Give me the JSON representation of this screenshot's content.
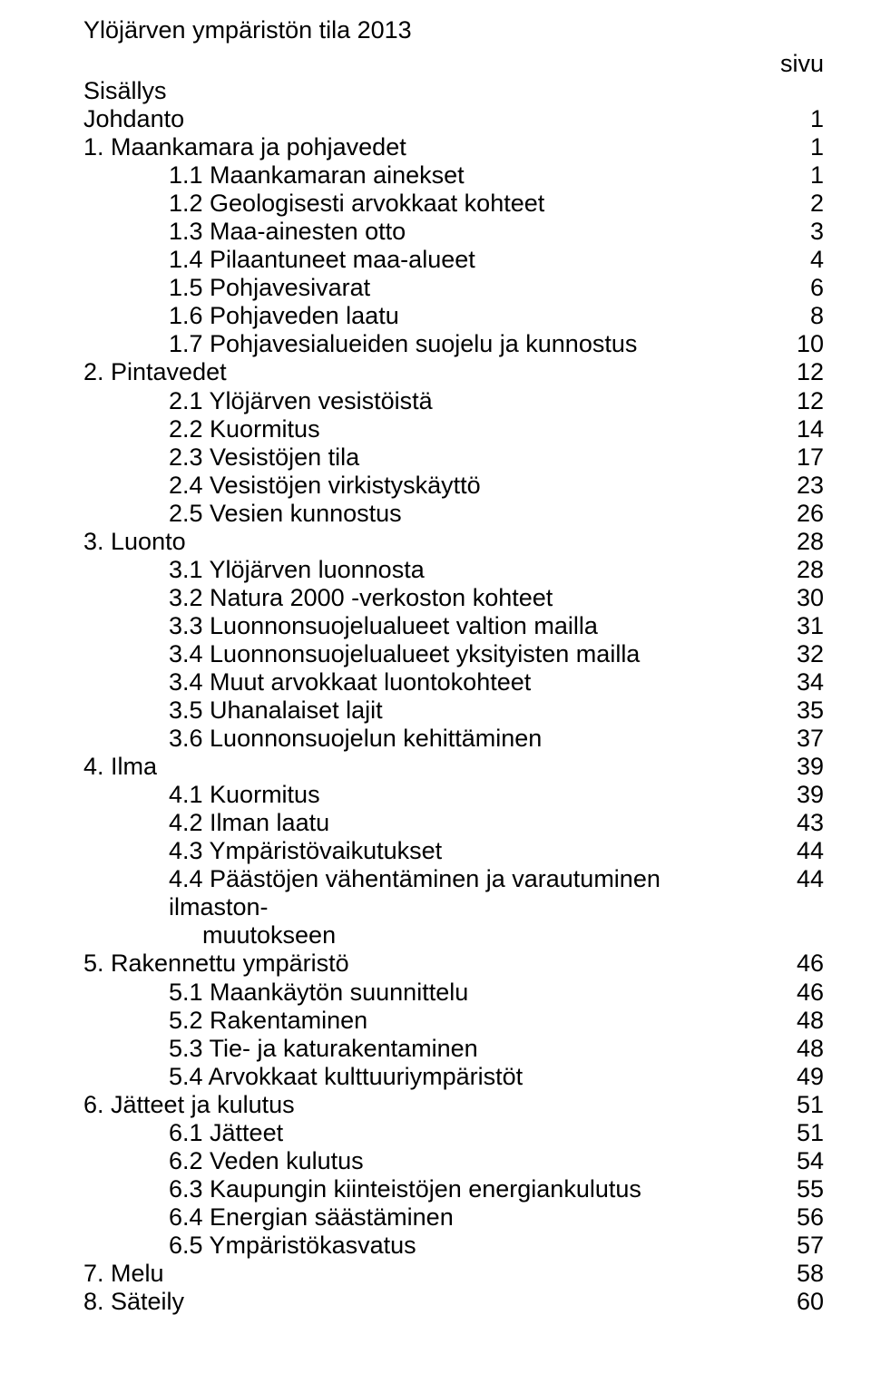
{
  "doc": {
    "title": "Ylöjärven ympäristön tila 2013",
    "page_label": "sivu",
    "font_family": "Arial, Helvetica, sans-serif",
    "font_size_pt": 20,
    "text_color": "#000000",
    "background_color": "#ffffff"
  },
  "toc": [
    {
      "label": "Sisällys",
      "page": "",
      "indent": 0
    },
    {
      "label": "Johdanto",
      "page": "1",
      "indent": 0
    },
    {
      "label": "1. Maankamara ja pohjavedet",
      "page": "1",
      "indent": 0
    },
    {
      "label": "1.1 Maankamaran ainekset",
      "page": "1",
      "indent": 1
    },
    {
      "label": "1.2 Geologisesti arvokkaat kohteet",
      "page": "2",
      "indent": 1
    },
    {
      "label": "1.3 Maa-ainesten otto",
      "page": "3",
      "indent": 1
    },
    {
      "label": "1.4 Pilaantuneet maa-alueet",
      "page": "4",
      "indent": 1
    },
    {
      "label": "1.5 Pohjavesivarat",
      "page": "6",
      "indent": 1
    },
    {
      "label": "1.6 Pohjaveden laatu",
      "page": "8",
      "indent": 1
    },
    {
      "label": "1.7 Pohjavesialueiden suojelu ja kunnostus",
      "page": "10",
      "indent": 1
    },
    {
      "label": "2. Pintavedet",
      "page": "12",
      "indent": 0
    },
    {
      "label": "2.1 Ylöjärven vesistöistä",
      "page": "12",
      "indent": 1
    },
    {
      "label": "2.2 Kuormitus",
      "page": "14",
      "indent": 1
    },
    {
      "label": "2.3 Vesistöjen tila",
      "page": "17",
      "indent": 1
    },
    {
      "label": "2.4 Vesistöjen virkistyskäyttö",
      "page": "23",
      "indent": 1
    },
    {
      "label": "2.5 Vesien kunnostus",
      "page": "26",
      "indent": 1
    },
    {
      "label": "3. Luonto",
      "page": "28",
      "indent": 0
    },
    {
      "label": "3.1 Ylöjärven luonnosta",
      "page": "28",
      "indent": 1
    },
    {
      "label": "3.2 Natura 2000 -verkoston kohteet",
      "page": "30",
      "indent": 1
    },
    {
      "label": "3.3 Luonnonsuojelualueet valtion mailla",
      "page": "31",
      "indent": 1
    },
    {
      "label": "3.4 Luonnonsuojelualueet yksityisten mailla",
      "page": "32",
      "indent": 1
    },
    {
      "label": "3.4 Muut arvokkaat luontokohteet",
      "page": "34",
      "indent": 1
    },
    {
      "label": "3.5 Uhanalaiset lajit",
      "page": "35",
      "indent": 1
    },
    {
      "label": "3.6 Luonnonsuojelun kehittäminen",
      "page": "37",
      "indent": 1
    },
    {
      "label": "4. Ilma",
      "page": "39",
      "indent": 0
    },
    {
      "label": "4.1 Kuormitus",
      "page": "39",
      "indent": 1
    },
    {
      "label": "4.2 Ilman laatu",
      "page": "43",
      "indent": 1
    },
    {
      "label": "4.3 Ympäristövaikutukset",
      "page": "44",
      "indent": 1
    },
    {
      "label": "4.4 Päästöjen vähentäminen ja varautuminen ilmaston-",
      "page": "44",
      "indent": 1,
      "wrap": "muutokseen"
    },
    {
      "label": "5. Rakennettu ympäristö",
      "page": "46",
      "indent": 0
    },
    {
      "label": "5.1 Maankäytön suunnittelu",
      "page": "46",
      "indent": 1
    },
    {
      "label": "5.2 Rakentaminen",
      "page": "48",
      "indent": 1
    },
    {
      "label": "5.3 Tie- ja katurakentaminen",
      "page": "48",
      "indent": 1
    },
    {
      "label": "5.4 Arvokkaat kulttuuriympäristöt",
      "page": "49",
      "indent": 1
    },
    {
      "label": "6. Jätteet ja kulutus",
      "page": "51",
      "indent": 0
    },
    {
      "label": "6.1 Jätteet",
      "page": "51",
      "indent": 1
    },
    {
      "label": "6.2 Veden kulutus",
      "page": "54",
      "indent": 1
    },
    {
      "label": "6.3 Kaupungin kiinteistöjen energiankulutus",
      "page": "55",
      "indent": 1
    },
    {
      "label": "6.4 Energian säästäminen",
      "page": "56",
      "indent": 1
    },
    {
      "label": "6.5 Ympäristökasvatus",
      "page": "57",
      "indent": 1
    },
    {
      "label": "7. Melu",
      "page": "58",
      "indent": 0
    },
    {
      "label": "8. Säteily",
      "page": "60",
      "indent": 0
    }
  ]
}
